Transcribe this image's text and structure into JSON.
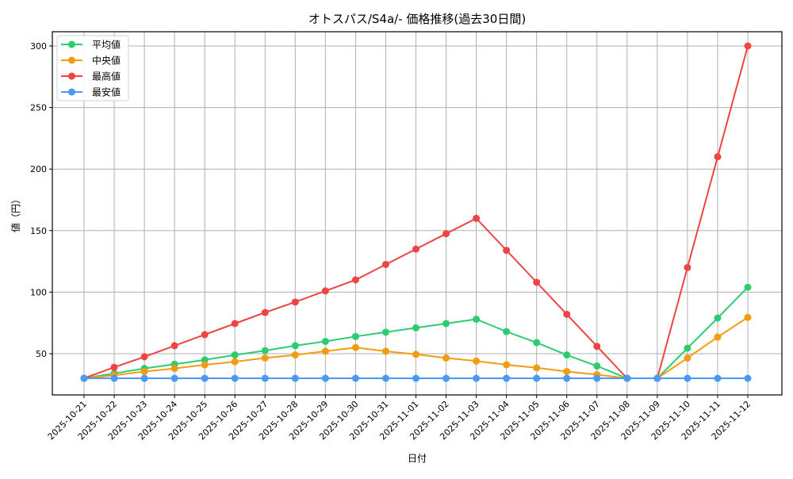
{
  "chart_data": {
    "type": "line",
    "title": "オトスパス/S4a/- 価格推移(過去30日間)",
    "xlabel": "日付",
    "ylabel": "値（円）",
    "ylim": [
      15,
      313
    ],
    "yticks": [
      50,
      100,
      150,
      200,
      250,
      300
    ],
    "grid": true,
    "legend_position": "upper left",
    "categories": [
      "2025-10-21",
      "2025-10-22",
      "2025-10-23",
      "2025-10-24",
      "2025-10-25",
      "2025-10-26",
      "2025-10-27",
      "2025-10-28",
      "2025-10-29",
      "2025-10-30",
      "2025-10-31",
      "2025-11-01",
      "2025-11-02",
      "2025-11-03",
      "2025-11-04",
      "2025-11-05",
      "2025-11-06",
      "2025-11-07",
      "2025-11-08",
      "2025-11-09",
      "2025-11-10",
      "2025-11-11",
      "2025-11-12"
    ],
    "series": [
      {
        "name": "平均値",
        "color": "#2ecc71",
        "values": [
          30,
          34,
          38,
          41.5,
          45,
          49,
          52.5,
          56.5,
          60,
          64,
          67.5,
          71,
          74.5,
          78,
          68,
          59,
          49,
          40,
          30,
          30,
          54.5,
          79,
          104
        ]
      },
      {
        "name": "中央値",
        "color": "#f39c12",
        "values": [
          30,
          32.5,
          35.5,
          38,
          41,
          43.5,
          46.5,
          49,
          52,
          55,
          52,
          49.5,
          46.5,
          44,
          41,
          38.5,
          35.5,
          33,
          30,
          30,
          46.5,
          63.5,
          79.5
        ]
      },
      {
        "name": "最高値",
        "color": "#ef4444",
        "values": [
          30,
          39,
          47.5,
          56.5,
          65.5,
          74.5,
          83.5,
          92,
          101,
          110,
          122.5,
          135,
          147.5,
          160,
          134,
          108,
          82,
          56,
          30,
          30,
          120,
          210,
          300
        ]
      },
      {
        "name": "最安値",
        "color": "#4a9af5",
        "values": [
          30,
          30,
          30,
          30,
          30,
          30,
          30,
          30,
          30,
          30,
          30,
          30,
          30,
          30,
          30,
          30,
          30,
          30,
          30,
          30,
          30,
          30,
          30
        ]
      }
    ]
  }
}
